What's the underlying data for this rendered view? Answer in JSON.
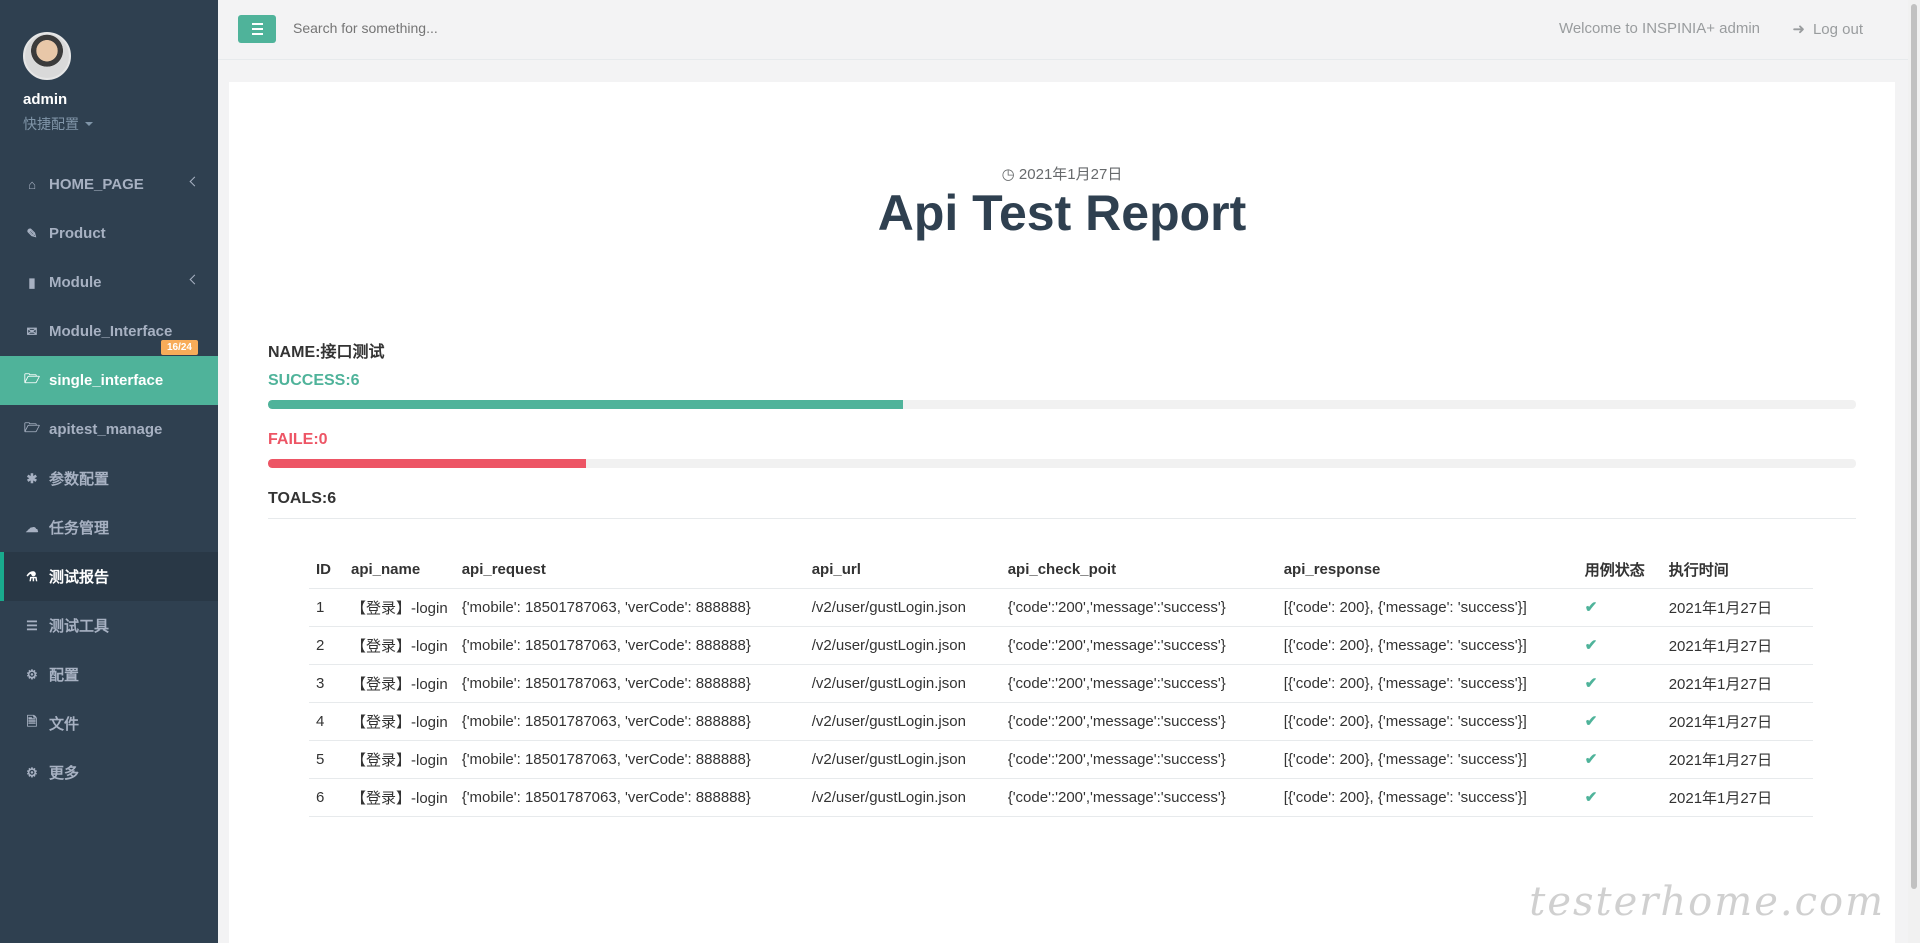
{
  "sidebar": {
    "profile_name": "admin",
    "profile_role": "快捷配置",
    "items": [
      {
        "label": "HOME_PAGE",
        "icon": "home-icon"
      },
      {
        "label": "Product",
        "icon": "edit-icon"
      },
      {
        "label": "Module",
        "icon": "bar-chart-icon"
      },
      {
        "label": "Module_Interface",
        "icon": "envelope-icon",
        "badge": "16/24"
      },
      {
        "label": "single_interface",
        "icon": "folder-open-icon"
      },
      {
        "label": "apitest_manage",
        "icon": "folder-open-icon"
      },
      {
        "label": "参数配置",
        "icon": "asterisk-icon"
      },
      {
        "label": "任务管理",
        "icon": "cloud-download-icon"
      },
      {
        "label": "测试报告",
        "icon": "flask-icon"
      },
      {
        "label": "测试工具",
        "icon": "database-icon"
      },
      {
        "label": "配置",
        "icon": "gear-icon"
      },
      {
        "label": "文件",
        "icon": "file-icon"
      },
      {
        "label": "更多",
        "icon": "gears-icon"
      }
    ]
  },
  "topbar": {
    "search_placeholder": "Search for something...",
    "welcome": "Welcome to INSPINIA+ admin",
    "logout": "Log out"
  },
  "report": {
    "date": "2021年1月27日",
    "title": "Api Test Report",
    "name": "NAME:接口测试",
    "success": "SUCCESS:6",
    "fail": "FAILE:0",
    "totals": "TOALS:6",
    "success_fraction": 0.4,
    "fail_fraction": 0.2
  },
  "table": {
    "headers": [
      "ID",
      "api_name",
      "api_request",
      "api_url",
      "api_check_poit",
      "api_response",
      "用例状态",
      "执行时间"
    ],
    "rows": [
      {
        "id": "1",
        "name": "【登录】-login",
        "request": "{'mobile': 18501787063, 'verCode': 888888}",
        "url": "/v2/user/gustLogin.json",
        "check": "{'code':'200','message':'success'}",
        "response": "[{'code': 200}, {'message': 'success'}]",
        "status": "✔",
        "time": "2021年1月27日"
      },
      {
        "id": "2",
        "name": "【登录】-login",
        "request": "{'mobile': 18501787063, 'verCode': 888888}",
        "url": "/v2/user/gustLogin.json",
        "check": "{'code':'200','message':'success'}",
        "response": "[{'code': 200}, {'message': 'success'}]",
        "status": "✔",
        "time": "2021年1月27日"
      },
      {
        "id": "3",
        "name": "【登录】-login",
        "request": "{'mobile': 18501787063, 'verCode': 888888}",
        "url": "/v2/user/gustLogin.json",
        "check": "{'code':'200','message':'success'}",
        "response": "[{'code': 200}, {'message': 'success'}]",
        "status": "✔",
        "time": "2021年1月27日"
      },
      {
        "id": "4",
        "name": "【登录】-login",
        "request": "{'mobile': 18501787063, 'verCode': 888888}",
        "url": "/v2/user/gustLogin.json",
        "check": "{'code':'200','message':'success'}",
        "response": "[{'code': 200}, {'message': 'success'}]",
        "status": "✔",
        "time": "2021年1月27日"
      },
      {
        "id": "5",
        "name": "【登录】-login",
        "request": "{'mobile': 18501787063, 'verCode': 888888}",
        "url": "/v2/user/gustLogin.json",
        "check": "{'code':'200','message':'success'}",
        "response": "[{'code': 200}, {'message': 'success'}]",
        "status": "✔",
        "time": "2021年1月27日"
      },
      {
        "id": "6",
        "name": "【登录】-login",
        "request": "{'mobile': 18501787063, 'verCode': 888888}",
        "url": "/v2/user/gustLogin.json",
        "check": "{'code':'200','message':'success'}",
        "response": "[{'code': 200}, {'message': 'success'}]",
        "status": "✔",
        "time": "2021年1月27日"
      }
    ]
  },
  "watermark": "testerhome.com",
  "colors": {
    "sidebar": "#2f4050",
    "accent": "#4fb39a",
    "danger": "#ed5565",
    "badge": "#f8ac59"
  }
}
